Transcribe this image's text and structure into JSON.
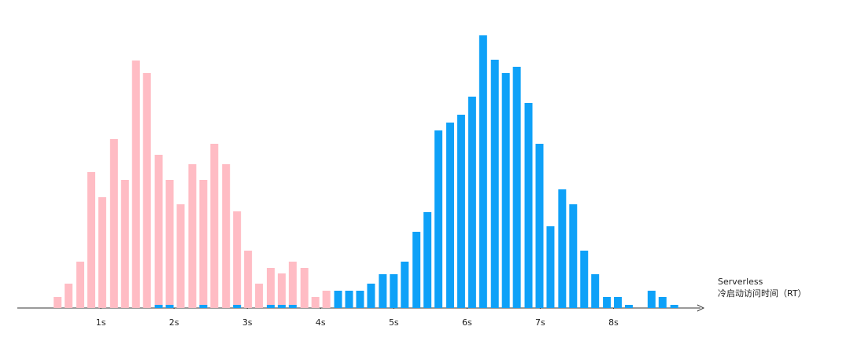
{
  "chart_data": {
    "type": "bar",
    "x": [
      0.41,
      0.56,
      0.72,
      0.87,
      1.02,
      1.18,
      1.33,
      1.48,
      1.63,
      1.79,
      1.94,
      2.09,
      2.25,
      2.4,
      2.55,
      2.71,
      2.86,
      3.01,
      3.16,
      3.32,
      3.47,
      3.62,
      3.78,
      3.93,
      4.08,
      4.24,
      4.39,
      4.54,
      4.69,
      4.85,
      5.0,
      5.15,
      5.31,
      5.46,
      5.61,
      5.77,
      5.92,
      6.07,
      6.22,
      6.38,
      6.53,
      6.68,
      6.84,
      6.99,
      7.14,
      7.3,
      7.45,
      7.6,
      7.75,
      7.91,
      8.06,
      8.21,
      8.37,
      8.52,
      8.67,
      8.83
    ],
    "series": [
      {
        "color": "#ffbcc4",
        "values": [
          14,
          31,
          59,
          173,
          141,
          215,
          163,
          315,
          299,
          195,
          163,
          132,
          183,
          163,
          209,
          183,
          123,
          73,
          31,
          51,
          44,
          59,
          51,
          14,
          22,
          6,
          14,
          4,
          4,
          null,
          null,
          null,
          null,
          null,
          null,
          null,
          null,
          null,
          null,
          null,
          null,
          null,
          null,
          null,
          null,
          null,
          null,
          null,
          null,
          null,
          null,
          null,
          null,
          null,
          null,
          null
        ]
      },
      {
        "color": "#0ea1f8",
        "values": [
          null,
          null,
          null,
          null,
          null,
          null,
          null,
          null,
          null,
          4,
          4,
          null,
          null,
          4,
          null,
          null,
          4,
          null,
          null,
          4,
          4,
          4,
          null,
          null,
          null,
          22,
          22,
          22,
          31,
          43,
          43,
          59,
          97,
          122,
          226,
          236,
          246,
          269,
          347,
          316,
          299,
          307,
          261,
          209,
          104,
          151,
          132,
          73,
          43,
          14,
          14,
          4,
          null,
          22,
          14,
          4
        ]
      }
    ],
    "xlim": [
      -0.14,
      9.22
    ],
    "xticks": [
      {
        "value": 1,
        "label": "1s"
      },
      {
        "value": 2,
        "label": "2s"
      },
      {
        "value": 3,
        "label": "3s"
      },
      {
        "value": 4,
        "label": "4s"
      },
      {
        "value": 5,
        "label": "5s"
      },
      {
        "value": 6,
        "label": "6s"
      },
      {
        "value": 7,
        "label": "7s"
      },
      {
        "value": 8,
        "label": "8s"
      }
    ],
    "xlabel_lines": [
      "Serverless",
      "冷启动访问时间（RT）"
    ]
  }
}
